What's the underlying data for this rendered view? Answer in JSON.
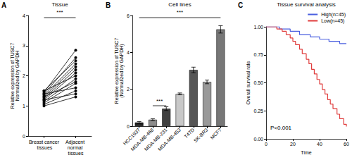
{
  "chart_data": [
    {
      "type": "line",
      "panel": "A",
      "title": "Tissue",
      "ylabel": "Relative expression of TUSC7\nNormalized by GAPDH",
      "categories": [
        "Breast cancer tissues",
        "Adjacent normal tissues"
      ],
      "color": "#000000",
      "marker": "circle",
      "series": [
        {
          "values": [
            1.45,
            2.85
          ]
        },
        {
          "values": [
            1.4,
            2.6
          ]
        },
        {
          "values": [
            1.5,
            2.5
          ]
        },
        {
          "values": [
            1.35,
            2.4
          ]
        },
        {
          "values": [
            1.3,
            2.3
          ]
        },
        {
          "values": [
            1.25,
            2.2
          ]
        },
        {
          "values": [
            1.2,
            2.1
          ]
        },
        {
          "values": [
            1.5,
            2.0
          ]
        },
        {
          "values": [
            1.15,
            1.9
          ]
        },
        {
          "values": [
            1.3,
            1.8
          ]
        },
        {
          "values": [
            1.1,
            1.75
          ]
        },
        {
          "values": [
            1.4,
            1.6
          ]
        },
        {
          "values": [
            1.05,
            1.5
          ]
        },
        {
          "values": [
            1.2,
            1.4
          ]
        },
        {
          "values": [
            1.0,
            1.3
          ]
        }
      ],
      "ylim": [
        0,
        4
      ],
      "yticks": [
        0,
        1,
        2,
        3,
        4
      ],
      "grid": false,
      "annotations": [
        "***"
      ]
    },
    {
      "type": "bar",
      "panel": "B",
      "title": "Cell lines",
      "ylabel": "Relative expression of TUSC7\n(Normalized by GAPDH)",
      "categories": [
        "HCC1937",
        "MDA-MB-468",
        "MDA-MB-231",
        "MDA-MB-453",
        "T47D",
        "SK-BR3",
        "MCF7"
      ],
      "values": [
        0.2,
        0.35,
        0.95,
        1.75,
        3.05,
        2.4,
        5.25
      ],
      "errors": [
        0.05,
        0.05,
        0.1,
        0.05,
        0.15,
        0.1,
        0.2
      ],
      "colors": [
        "#222222",
        "#8c8c8c",
        "#404040",
        "#c8c8c8",
        "#555555",
        "#999999",
        "#777777"
      ],
      "ylim": [
        0,
        6
      ],
      "yticks": [
        0,
        2,
        4,
        6
      ],
      "grid": false,
      "annotations": [
        "***",
        "***"
      ]
    },
    {
      "type": "line",
      "panel": "C",
      "title": "Tissue survival analysis",
      "xlabel": "Time",
      "ylabel": "Overall survival rate",
      "line_style": "step",
      "marker": "none",
      "legend": "top-right",
      "series": [
        {
          "name": "High(n=45)",
          "color": "#4a5fe0",
          "x": [
            0,
            10,
            18,
            25,
            33,
            40,
            47,
            55,
            60
          ],
          "values": [
            1.0,
            0.98,
            0.96,
            0.93,
            0.91,
            0.89,
            0.87,
            0.85,
            0.85
          ]
        },
        {
          "name": "Low(n=45)",
          "color": "#e03c3c",
          "x": [
            0,
            8,
            12,
            15,
            18,
            20,
            22,
            25,
            27,
            30,
            32,
            34,
            36,
            38,
            40,
            42,
            44,
            46,
            48,
            50,
            53,
            55,
            58,
            60
          ],
          "values": [
            1.0,
            0.98,
            0.96,
            0.93,
            0.9,
            0.87,
            0.84,
            0.8,
            0.76,
            0.71,
            0.67,
            0.62,
            0.58,
            0.53,
            0.49,
            0.44,
            0.4,
            0.35,
            0.31,
            0.27,
            0.22,
            0.18,
            0.13,
            0.11
          ]
        }
      ],
      "xlim": [
        0,
        60
      ],
      "xticks": [
        0,
        20,
        40,
        60
      ],
      "ylim": [
        0,
        1.0
      ],
      "yticks": [
        {
          "value": 0,
          "label": "0.00"
        },
        {
          "value": 0.25,
          "label": "0.25"
        },
        {
          "value": 0.5,
          "label": "0.50"
        },
        {
          "value": 0.75,
          "label": "0.75"
        },
        {
          "value": 1.0,
          "label": "1.00"
        }
      ],
      "grid": false,
      "annotations": [
        "P<0.001"
      ]
    }
  ]
}
